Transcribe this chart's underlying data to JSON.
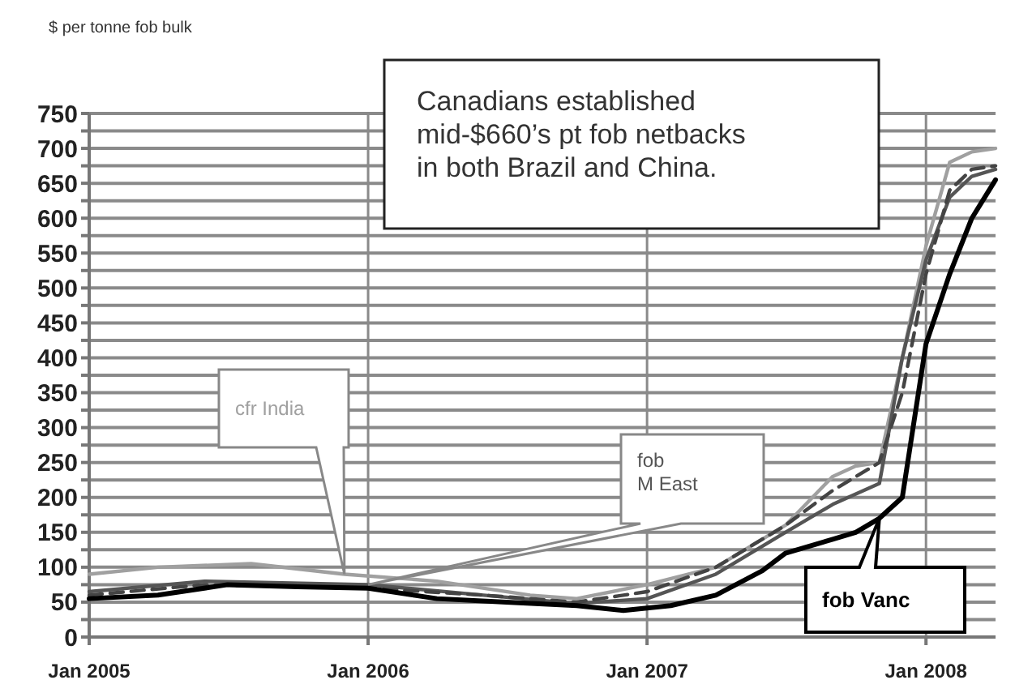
{
  "chart_data": {
    "type": "line",
    "ylabel": "$ per tonne fob bulk",
    "annotations": [
      "Canadians established mid-$660’s pt fob netbacks in both Brazil and China."
    ],
    "xlim": [
      "2005-01",
      "2008-04"
    ],
    "xticks": [
      {
        "value": "2005-01",
        "label": "Jan 2005"
      },
      {
        "value": "2006-01",
        "label": "Jan 2006"
      },
      {
        "value": "2007-01",
        "label": "Jan 2007"
      },
      {
        "value": "2008-01",
        "label": "Jan 2008"
      }
    ],
    "ylim": [
      0,
      750
    ],
    "yticks": [
      0,
      {
        "value": 25,
        "label": null
      },
      50,
      {
        "value": 75,
        "label": null
      },
      100,
      {
        "value": 125,
        "label": null
      },
      150,
      {
        "value": 175,
        "label": null
      },
      200,
      {
        "value": 225,
        "label": null
      },
      250,
      {
        "value": 275,
        "label": null
      },
      300,
      {
        "value": 325,
        "label": null
      },
      350,
      {
        "value": 375,
        "label": null
      },
      400,
      {
        "value": 425,
        "label": null
      },
      450,
      {
        "value": 475,
        "label": null
      },
      500,
      {
        "value": 525,
        "label": null
      },
      550,
      {
        "value": 575,
        "label": null
      },
      600,
      {
        "value": 625,
        "label": null
      },
      650,
      {
        "value": 675,
        "label": null
      },
      700,
      {
        "value": 725,
        "label": null
      },
      750
    ],
    "grid": true,
    "legend": false,
    "series": [
      {
        "name": "cfr India",
        "color": "#a0a0a0",
        "x": [
          "2005-01",
          "2005-04",
          "2005-08",
          "2005-12",
          "2006-04",
          "2006-08",
          "2006-10",
          "2007-01",
          "2007-04",
          "2007-07",
          "2007-09",
          "2007-10",
          "2007-11",
          "2007-12",
          "2008-01",
          "2008-02",
          "2008-03",
          "2008-04"
        ],
        "values": [
          90,
          100,
          105,
          90,
          80,
          60,
          55,
          75,
          100,
          160,
          230,
          245,
          250,
          400,
          560,
          680,
          695,
          700
        ]
      },
      {
        "name": "fob M East",
        "color": "#555555",
        "x": [
          "2005-01",
          "2005-06",
          "2006-01",
          "2006-06",
          "2006-10",
          "2007-01",
          "2007-04",
          "2007-07",
          "2007-09",
          "2007-11",
          "2007-12",
          "2008-01",
          "2008-02",
          "2008-03",
          "2008-04"
        ],
        "values": [
          65,
          80,
          75,
          60,
          48,
          55,
          90,
          150,
          190,
          220,
          400,
          540,
          630,
          660,
          670
        ]
      },
      {
        "color": "#444444",
        "line_style": "dashed",
        "x": [
          "2005-01",
          "2005-06",
          "2006-01",
          "2006-06",
          "2006-10",
          "2007-01",
          "2007-04",
          "2007-07",
          "2007-09",
          "2007-11",
          "2007-12",
          "2008-01",
          "2008-02",
          "2008-03",
          "2008-04"
        ],
        "values": [
          60,
          75,
          70,
          60,
          50,
          65,
          100,
          160,
          210,
          250,
          350,
          520,
          640,
          670,
          675
        ]
      },
      {
        "name": "fob Vanc",
        "color": "#000000",
        "x": [
          "2005-01",
          "2005-04",
          "2005-07",
          "2005-10",
          "2006-01",
          "2006-04",
          "2006-07",
          "2006-10",
          "2006-12",
          "2007-02",
          "2007-04",
          "2007-06",
          "2007-07",
          "2007-09",
          "2007-10",
          "2007-11",
          "2007-12",
          "2008-01",
          "2008-02",
          "2008-03",
          "2008-04"
        ],
        "values": [
          55,
          60,
          75,
          72,
          70,
          55,
          50,
          45,
          38,
          45,
          60,
          95,
          120,
          140,
          150,
          170,
          200,
          420,
          520,
          600,
          655
        ]
      }
    ]
  }
}
